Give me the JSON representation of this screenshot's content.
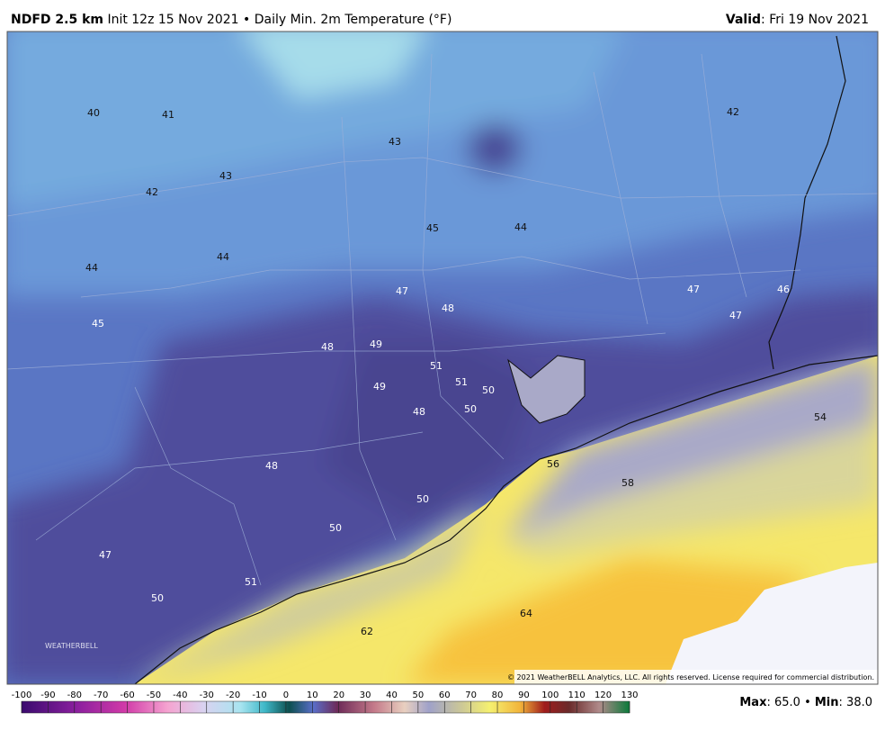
{
  "header": {
    "model": "NDFD 2.5 km",
    "description": "Init 12z 15 Nov 2021 • Daily Min. 2m Temperature (°F)",
    "valid_label": "Valid",
    "valid_value": ": Fri 19 Nov 2021"
  },
  "map": {
    "labels": [
      40,
      41,
      43,
      42,
      43,
      42,
      45,
      44,
      44,
      44,
      47,
      48,
      47,
      46,
      47,
      45,
      48,
      49,
      51,
      51,
      50,
      49,
      48,
      50,
      54,
      48,
      56,
      58,
      50,
      50,
      47,
      51,
      50,
      64,
      62
    ],
    "copyright": "© 2021 WeatherBELL Analytics, LLC. All rights reserved. License required for commercial distribution.",
    "logo": "WEATHERBELL"
  },
  "colorbar": {
    "ticks": [
      -100,
      -90,
      -80,
      -70,
      -60,
      -50,
      -40,
      -30,
      -20,
      -10,
      0,
      10,
      20,
      30,
      40,
      50,
      60,
      70,
      80,
      90,
      100,
      110,
      120,
      130
    ]
  },
  "footer": {
    "max_label": "Max",
    "max_value": ": 65.0 • ",
    "min_label": "Min",
    "min_value": ": 38.0"
  }
}
